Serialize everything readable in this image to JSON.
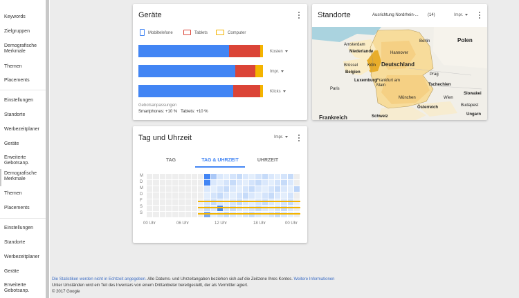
{
  "sidebar": {
    "items": [
      "Keywords",
      "Zielgruppen",
      "Demografische Merkmale",
      "Themen",
      "Placements",
      "Einstellungen",
      "Standorte",
      "Werbezeitplaner",
      "Geräte",
      "Erweiterte Gebotsanp.",
      "Demografische Merkmale",
      "Themen",
      "Placements",
      "Einstellungen",
      "Standorte",
      "Werbezeitplaner",
      "Geräte",
      "Erweiterte Gebotsanp."
    ]
  },
  "devices": {
    "title": "Geräte",
    "legend": [
      "Mobiltelefone",
      "Tablets",
      "Computer"
    ],
    "colors": {
      "mobile": "#4285f4",
      "tablet": "#db4437",
      "computer": "#f4b400"
    },
    "rows": [
      {
        "metric": "Kosten",
        "mobile": 73,
        "tablet": 25,
        "computer": 2
      },
      {
        "metric": "Impr.",
        "mobile": 78,
        "tablet": 16,
        "computer": 6
      },
      {
        "metric": "Klicks",
        "mobile": 76,
        "tablet": 22,
        "computer": 2
      }
    ],
    "bid_adj_label": "Gebotsanpassungen",
    "bid_adj_value": "Smartphones: +10 %   Tablets: +10 %"
  },
  "locations": {
    "title": "Standorte",
    "filter": "Ausrichtung Nordrhein-...",
    "count": "(14)",
    "metric": "Impr.",
    "labels": {
      "polen": "Polen",
      "berlin": "Berlin",
      "amsterdam": "Amsterdam",
      "niederlande": "Niederlande",
      "hannover": "Hannover",
      "bruessel": "Brüssel",
      "koeln": "Köln",
      "deutschland": "Deutschland",
      "belgien": "Belgien",
      "prag": "Prag",
      "luxemburg": "Luxemburg",
      "frankfurt": "Frankfurt am Main",
      "tschechien": "Tschechien",
      "paris": "Paris",
      "muenchen": "München",
      "wien": "Wien",
      "slowakei": "Slowakei",
      "budapest": "Budapest",
      "oesterreich": "Österreich",
      "frankreich": "Frankreich",
      "schweiz": "Schweiz",
      "ungarn": "Ungarn"
    }
  },
  "daytime": {
    "title": "Tag und Uhrzeit",
    "metric": "Impr.",
    "tabs": [
      "TAG",
      "TAG & UHRZEIT",
      "UHRZEIT"
    ],
    "days": [
      "M",
      "D",
      "M",
      "D",
      "F",
      "S",
      "S"
    ],
    "hours": [
      "00 Uhr",
      "06 Uhr",
      "12 Uhr",
      "18 Uhr",
      "00 Uhr"
    ]
  },
  "footer": {
    "line1_link": "Die Statistiken werden nicht in Echtzeit angegeben.",
    "line1_text": " Alle Datums- und Uhrzeitangaben beziehen sich auf die Zeitzone Ihres Kontos. ",
    "line1_link2": "Weitere Informationen",
    "line2": "Unter Umständen wird ein Teil des Inventars von einem Drittanbieter bereitgestellt, der als Vermittler agiert.",
    "line3": "© 2017 Google"
  }
}
